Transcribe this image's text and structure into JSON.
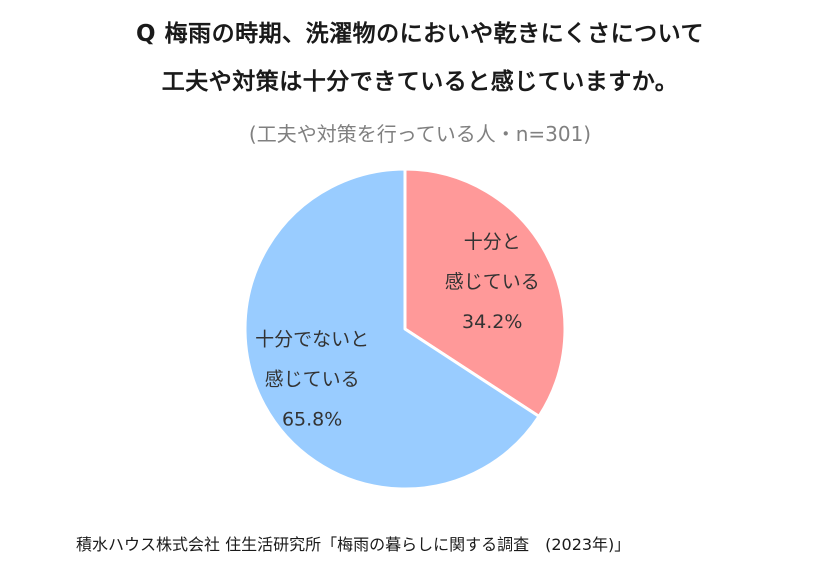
{
  "header": {
    "title_line1": "Q  梅雨の時期、洗濯物のにおいや乾きにくさについて",
    "title_line2": "工夫や対策は十分できていると感じていますか。",
    "subtitle": "(工夫や対策を行っている人・n=301)"
  },
  "chart_data": {
    "type": "pie",
    "title": "Q  梅雨の時期、洗濯物のにおいや乾きにくさについて 工夫や対策は十分できていると感じていますか。",
    "subtitle": "(工夫や対策を行っている人・n=301)",
    "slices": [
      {
        "label_lines": [
          "十分と",
          "感じている"
        ],
        "value": 34.2,
        "value_label": "34.2%",
        "color": "#ff9999"
      },
      {
        "label_lines": [
          "十分でないと",
          "感じている"
        ],
        "value": 65.8,
        "value_label": "65.8%",
        "color": "#99ccff"
      }
    ],
    "start_angle_deg": 0,
    "direction": "clockwise"
  },
  "footer": {
    "source": "積水ハウス株式会社 住生活研究所「梅雨の暮らしに関する調査　(2023年)」"
  }
}
